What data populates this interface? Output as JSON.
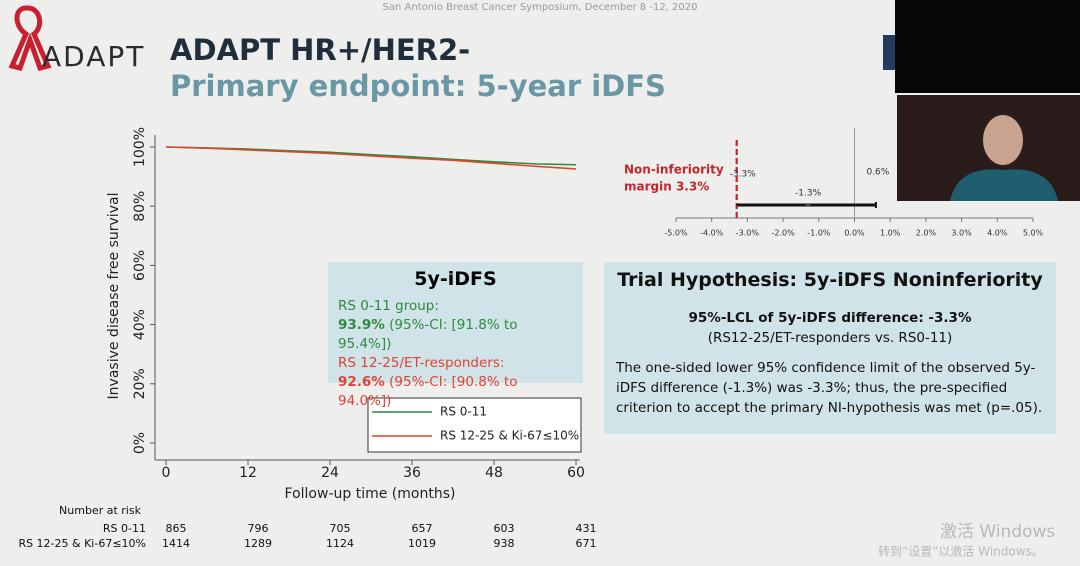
{
  "header": "San Antonio Breast Cancer Symposium, December 8 -12, 2020",
  "logo": "ADAPT",
  "title": "ADAPT HR+/HER2-",
  "subtitle": "Primary endpoint: 5-year iDFS",
  "chart_data": [
    {
      "type": "line",
      "xlabel": "Follow-up time (months)",
      "ylabel": "Invasive disease free survival",
      "x": [
        0,
        6,
        12,
        18,
        24,
        30,
        36,
        42,
        48,
        54,
        60
      ],
      "series": [
        {
          "name": "RS 0-11",
          "color": "#2e8b3e",
          "values": [
            100,
            99.7,
            99.3,
            98.7,
            98.2,
            97.4,
            96.7,
            95.8,
            95,
            94.3,
            94
          ]
        },
        {
          "name": "RS 12-25 & Ki-67≤10%",
          "color": "#e0442f",
          "values": [
            100,
            99.6,
            99,
            98.4,
            97.8,
            97,
            96.2,
            95.5,
            94.5,
            93.5,
            92.6
          ]
        }
      ],
      "xlim": [
        0,
        60
      ],
      "xticks": [
        0,
        12,
        24,
        36,
        48,
        60
      ],
      "ylim": [
        0,
        100
      ],
      "yticks": [
        {
          "value": 0,
          "label": "0%"
        },
        {
          "value": 20,
          "label": "20%"
        },
        {
          "value": 40,
          "label": "40%"
        },
        {
          "value": 60,
          "label": "60%"
        },
        {
          "value": 80,
          "label": "80%"
        },
        {
          "value": 100,
          "label": "100%"
        }
      ],
      "legend": "lower right"
    },
    {
      "type": "interval",
      "annotation": [
        "Non-inferiority",
        "margin 3.3%"
      ],
      "values": [
        -3.3,
        -1.3,
        0.6
      ],
      "value_labels": [
        "-3.3%",
        "-1.3%",
        "0.6%"
      ],
      "margin": -3.3,
      "xlim": [
        -5,
        5
      ],
      "xticks": [
        {
          "value": -5,
          "label": "-5.0%"
        },
        {
          "value": -4,
          "label": "-4.0%"
        },
        {
          "value": -3,
          "label": "-3.0%"
        },
        {
          "value": -2,
          "label": "-2.0%"
        },
        {
          "value": -1,
          "label": "-1.0%"
        },
        {
          "value": 0,
          "label": "0.0%"
        },
        {
          "value": 1,
          "label": "1.0%"
        },
        {
          "value": 2,
          "label": "2.0%"
        },
        {
          "value": 3,
          "label": "3.0%"
        },
        {
          "value": 4,
          "label": "4.0%"
        },
        {
          "value": 5,
          "label": "5.0%"
        }
      ]
    }
  ],
  "risk_table": {
    "title": "Number at risk",
    "rows": [
      {
        "label": "RS 0-11",
        "values": [
          865,
          796,
          705,
          657,
          603,
          431
        ]
      },
      {
        "label": "RS 12-25 & Ki-67≤10%",
        "values": [
          1414,
          1289,
          1124,
          1019,
          938,
          671
        ]
      }
    ]
  },
  "box1": {
    "title": "5y-iDFS",
    "group1": "RS 0-11 group:",
    "value1": "93.9%",
    "ci1": "(95%-CI: [91.8% to 95.4%])",
    "group2": "RS 12-25/ET-responders:",
    "value2": "92.6%",
    "ci2": "(95%-CI: [90.8% to 94.0%])"
  },
  "box2": {
    "title": "Trial Hypothesis: 5y-iDFS Noninferiority",
    "lcl": "95%-LCL of 5y-iDFS difference: -3.3%",
    "comparison": "(RS12-25/ET-responders vs. RS0-11)",
    "text": "The one-sided lower 95% confidence limit of the observed 5y-iDFS difference (-1.3%) was -3.3%; thus, the pre-specified criterion to accept the primary NI-hypothesis was met (p=.05)."
  },
  "watermark": [
    "激活 Windows",
    "转到“设置”以激活 Windows。"
  ]
}
